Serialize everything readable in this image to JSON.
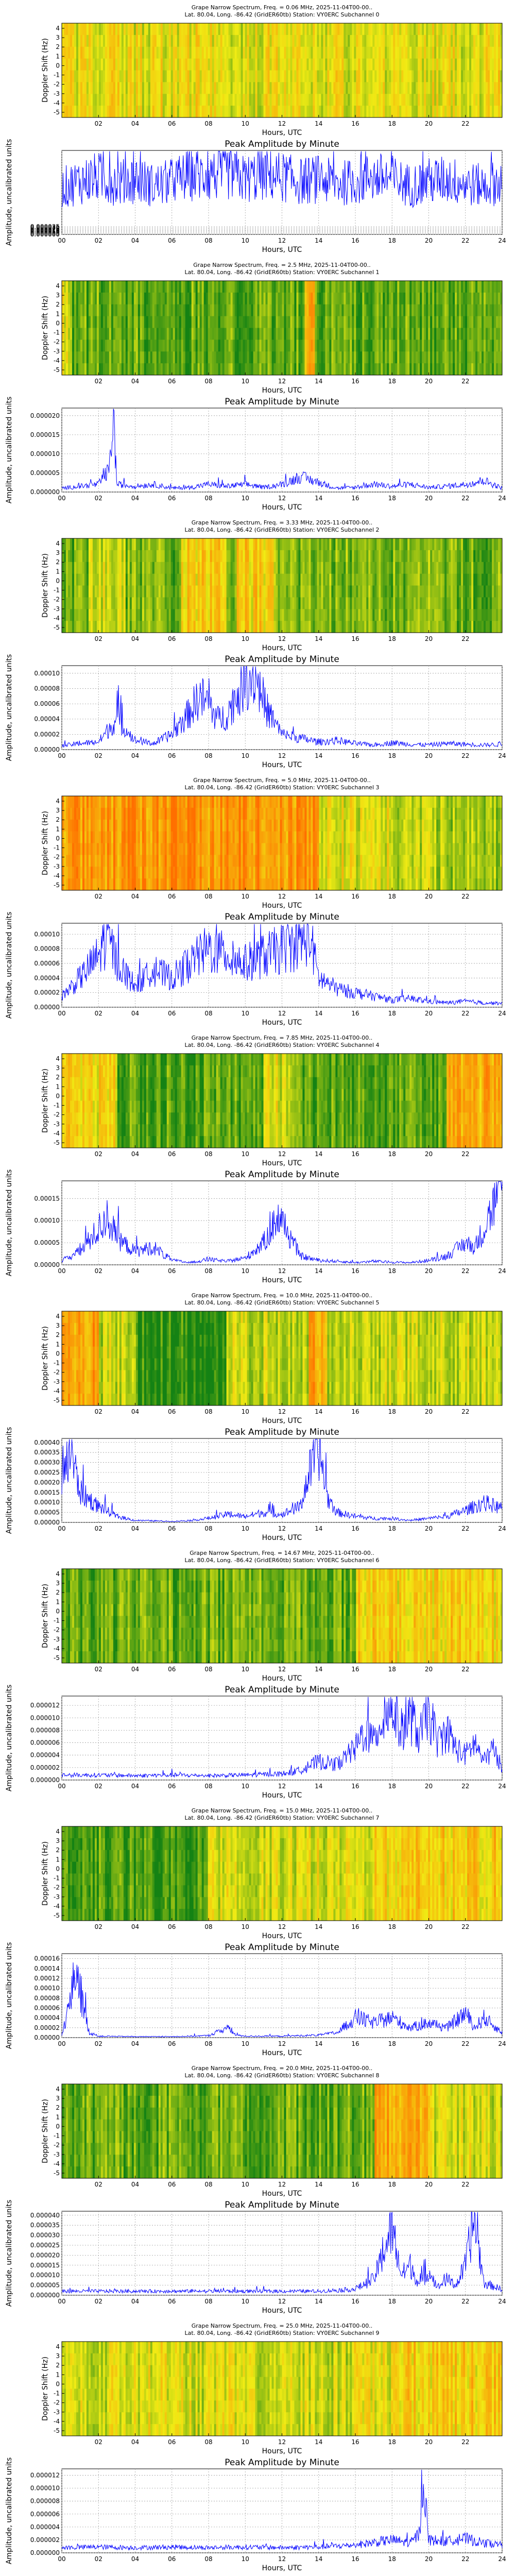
{
  "spectrum_common": {
    "ylabel": "Doppler Shift (Hz)",
    "xlabel": "Hours, UTC",
    "subtitle": "Lat. 80.04, Long. -86.42 (GridER60tb) Station: VY0ERC",
    "x_ticks": [
      "02",
      "04",
      "06",
      "08",
      "10",
      "12",
      "14",
      "16",
      "18",
      "20",
      "22"
    ],
    "y_ticks": [
      "4",
      "3",
      "2",
      "1",
      "0",
      "-1",
      "-2",
      "-3",
      "-4",
      "-5"
    ],
    "title_prefix": "Grape Narrow Spectrum, Freq. = ",
    "date_text": "2025-11-04T00-00..."
  },
  "amp_common": {
    "title": "Peak Amplitude by Minute",
    "ylabel": "Amplitude, uncalibrated units",
    "xlabel": "Hours, UTC",
    "x_ticks": [
      "00",
      "02",
      "04",
      "06",
      "08",
      "10",
      "12",
      "14",
      "16",
      "18",
      "20",
      "22",
      "24"
    ]
  },
  "colors": {
    "line": "#0000ff",
    "green": "#1e8c1e",
    "yellow": "#f2f200",
    "orange": "#ff7f00"
  },
  "chart_data": [
    {
      "type": "heatmap",
      "title": "Grape Narrow Spectrum, Freq. = 0.06 MHz, 2025-11-04T00-00..",
      "subchannel": "Subchannel 0",
      "xlabel": "Hours, UTC",
      "ylabel": "Doppler Shift (Hz)",
      "xlim": [
        0,
        24
      ],
      "ylim": [
        -5,
        4.5
      ],
      "base_level": 0.5,
      "bands": []
    },
    {
      "type": "line",
      "title": "Peak Amplitude by Minute",
      "xlabel": "Hours, UTC",
      "ylabel": "Amplitude, uncalibrated units",
      "xlim": [
        0,
        24
      ],
      "ylim": [
        0,
        0.00038
      ],
      "yticks": [
        "0.000000",
        "0.000005",
        "0.000010",
        "0.000015",
        "0.000020",
        "0.000025",
        "0.000030",
        "0.000035"
      ],
      "ytick_values": [
        0,
        5e-06,
        1e-05,
        1.5e-05,
        2e-05,
        2.5e-05,
        3e-05,
        3.5e-05
      ],
      "x": [
        0,
        1,
        2,
        3,
        4,
        5,
        6,
        7,
        8,
        9,
        10,
        11,
        12,
        13,
        14,
        15,
        16,
        17,
        18,
        19,
        20,
        21,
        22,
        23,
        24
      ],
      "y": [
        0.00021,
        0.00024,
        0.00026,
        0.00023,
        0.00025,
        0.00022,
        0.00024,
        0.00027,
        0.00026,
        0.00028,
        0.00025,
        0.00027,
        0.00026,
        0.00024,
        0.00025,
        0.00023,
        0.00024,
        0.00026,
        0.00025,
        0.00022,
        0.00024,
        0.00025,
        0.00023,
        0.00022,
        0.00024
      ]
    },
    {
      "type": "heatmap",
      "title": "Grape Narrow Spectrum, Freq. = 2.5 MHz, 2025-11-04T00-00..",
      "subchannel": "Subchannel 1",
      "xlabel": "Hours, UTC",
      "ylabel": "Doppler Shift (Hz)",
      "xlim": [
        0,
        24
      ],
      "ylim": [
        -5,
        4.5
      ],
      "base_level": 0.18,
      "bands": [
        [
          0,
          0.6,
          0.5
        ],
        [
          13.2,
          13.8,
          0.8
        ]
      ]
    },
    {
      "type": "line",
      "title": "Peak Amplitude by Minute",
      "xlabel": "Hours, UTC",
      "ylabel": "Amplitude, uncalibrated units",
      "xlim": [
        0,
        24
      ],
      "ylim": [
        0,
        2.2e-05
      ],
      "yticks": [
        "0.000000",
        "0.000005",
        "0.000010",
        "0.000015",
        "0.000020"
      ],
      "ytick_values": [
        0,
        5e-06,
        1e-05,
        1.5e-05,
        2e-05
      ],
      "x": [
        0,
        1,
        2,
        2.6,
        2.8,
        3,
        4,
        5,
        6,
        7,
        8,
        9,
        10,
        11,
        12,
        13,
        14,
        15,
        16,
        17,
        18,
        19,
        20,
        21,
        22,
        23,
        24
      ],
      "y": [
        1e-06,
        1.5e-06,
        2e-06,
        6e-06,
        2.1e-05,
        2e-06,
        1.5e-06,
        2e-06,
        1e-06,
        1.2e-06,
        2e-06,
        1.5e-06,
        2e-06,
        1.2e-06,
        2e-06,
        4e-06,
        2.5e-06,
        1e-06,
        1.2e-06,
        2e-06,
        1.5e-06,
        2e-06,
        1.2e-06,
        1.5e-06,
        2e-06,
        3e-06,
        1e-06
      ]
    },
    {
      "type": "heatmap",
      "title": "Grape Narrow Spectrum, Freq. = 3.33 MHz, 2025-11-04T00-00..",
      "subchannel": "Subchannel 2",
      "xlabel": "Hours, UTC",
      "ylabel": "Doppler Shift (Hz)",
      "xlim": [
        0,
        24
      ],
      "ylim": [
        -5,
        4.5
      ],
      "base_level": 0.22,
      "bands": [
        [
          1.5,
          3.5,
          0.45
        ],
        [
          6.5,
          9.0,
          0.6
        ],
        [
          9.5,
          11.5,
          0.6
        ]
      ]
    },
    {
      "type": "line",
      "title": "Peak Amplitude by Minute",
      "xlabel": "Hours, UTC",
      "ylabel": "Amplitude, uncalibrated units",
      "xlim": [
        0,
        24
      ],
      "ylim": [
        0,
        0.00011
      ],
      "yticks": [
        "0.00000",
        "0.00002",
        "0.00004",
        "0.00006",
        "0.00008",
        "0.00010"
      ],
      "ytick_values": [
        0,
        2e-05,
        4e-05,
        6e-05,
        8e-05,
        0.0001
      ],
      "x": [
        0,
        1,
        2,
        2.5,
        3,
        4,
        5,
        6,
        7,
        7.5,
        8,
        8.5,
        9,
        9.5,
        10,
        10.5,
        11,
        11.5,
        12,
        13,
        14,
        15,
        16,
        17,
        18,
        19,
        20,
        21,
        22,
        23,
        24
      ],
      "y": [
        5e-06,
        8e-06,
        1e-05,
        2.5e-05,
        4e-05,
        1.2e-05,
        8e-06,
        2e-05,
        5e-05,
        7e-05,
        6e-05,
        4e-05,
        4.5e-05,
        7e-05,
        9e-05,
        0.0001,
        6e-05,
        4e-05,
        2e-05,
        1.5e-05,
        1e-05,
        1.2e-05,
        8e-06,
        6e-06,
        9e-06,
        7e-06,
        6e-06,
        8e-06,
        7e-06,
        6e-06,
        7e-06
      ]
    },
    {
      "type": "heatmap",
      "title": "Grape Narrow Spectrum, Freq. = 5.0 MHz, 2025-11-04T00-00..",
      "subchannel": "Subchannel 3",
      "xlabel": "Hours, UTC",
      "ylabel": "Doppler Shift (Hz)",
      "xlim": [
        0,
        24
      ],
      "ylim": [
        -5,
        4.5
      ],
      "base_level": 0.5,
      "bands": [
        [
          0,
          14,
          0.85
        ],
        [
          14,
          18,
          0.5
        ],
        [
          18,
          24,
          0.35
        ]
      ]
    },
    {
      "type": "line",
      "title": "Peak Amplitude by Minute",
      "xlabel": "Hours, UTC",
      "ylabel": "Amplitude, uncalibrated units",
      "xlim": [
        0,
        24
      ],
      "ylim": [
        0,
        0.000115
      ],
      "yticks": [
        "0.00000",
        "0.00002",
        "0.00004",
        "0.00006",
        "0.00008",
        "0.00010"
      ],
      "ytick_values": [
        0,
        2e-05,
        4e-05,
        6e-05,
        8e-05,
        0.0001
      ],
      "x": [
        0,
        1,
        2,
        2.5,
        3,
        4,
        5,
        6,
        7,
        8,
        9,
        10,
        11,
        12,
        13,
        13.5,
        14,
        15,
        16,
        17,
        18,
        19,
        20,
        21,
        22,
        23,
        24
      ],
      "y": [
        1.5e-05,
        4e-05,
        7e-05,
        0.0001,
        6e-05,
        3e-05,
        5e-05,
        4e-05,
        6e-05,
        8e-05,
        7e-05,
        6e-05,
        7e-05,
        8e-05,
        9e-05,
        0.0001,
        4e-05,
        2.5e-05,
        2e-05,
        1.5e-05,
        1e-05,
        1.2e-05,
        8e-06,
        6e-06,
        8e-06,
        6e-06,
        5e-06
      ]
    },
    {
      "type": "heatmap",
      "title": "Grape Narrow Spectrum, Freq. = 7.85 MHz, 2025-11-04T00-00..",
      "subchannel": "Subchannel 4",
      "xlabel": "Hours, UTC",
      "ylabel": "Doppler Shift (Hz)",
      "xlim": [
        0,
        24
      ],
      "ylim": [
        -5,
        4.5
      ],
      "base_level": 0.15,
      "bands": [
        [
          0,
          3,
          0.55
        ],
        [
          11,
          13,
          0.45
        ],
        [
          21,
          24,
          0.75
        ]
      ]
    },
    {
      "type": "line",
      "title": "Peak Amplitude by Minute",
      "xlabel": "Hours, UTC",
      "ylabel": "Amplitude, uncalibrated units",
      "xlim": [
        0,
        24
      ],
      "ylim": [
        0,
        0.00019
      ],
      "yticks": [
        "0.00000",
        "0.00005",
        "0.00010",
        "0.00015"
      ],
      "ytick_values": [
        0,
        5e-05,
        0.0001,
        0.00015
      ],
      "x": [
        0,
        1,
        2,
        2.5,
        3,
        4,
        5,
        6,
        7,
        8,
        9,
        10,
        11,
        11.8,
        12.5,
        13,
        14,
        15,
        16,
        17,
        18,
        19,
        20,
        21,
        22,
        22.5,
        23,
        23.5,
        24
      ],
      "y": [
        1e-05,
        3e-05,
        8e-05,
        0.00011,
        6e-05,
        3e-05,
        4e-05,
        1e-05,
        5e-06,
        1.2e-05,
        8e-06,
        1.5e-05,
        5e-05,
        0.00011,
        6e-05,
        2e-05,
        1e-05,
        8e-06,
        5e-06,
        8e-06,
        6e-06,
        5e-06,
        1e-05,
        2e-05,
        5e-05,
        4e-05,
        8e-05,
        0.00013,
        0.00018
      ]
    },
    {
      "type": "heatmap",
      "title": "Grape Narrow Spectrum, Freq. = 10.0 MHz, 2025-11-04T00-00..",
      "subchannel": "Subchannel 5",
      "xlabel": "Hours, UTC",
      "ylabel": "Doppler Shift (Hz)",
      "xlim": [
        0,
        24
      ],
      "ylim": [
        -5,
        4.5
      ],
      "base_level": 0.4,
      "bands": [
        [
          0,
          2,
          0.8
        ],
        [
          4,
          9,
          0.05
        ],
        [
          13.5,
          14.5,
          0.75
        ]
      ]
    },
    {
      "type": "line",
      "title": "Peak Amplitude by Minute",
      "xlabel": "Hours, UTC",
      "ylabel": "Amplitude, uncalibrated units",
      "xlim": [
        0,
        24
      ],
      "ylim": [
        0,
        0.00042
      ],
      "yticks": [
        "0.00000",
        "0.00005",
        "0.00010",
        "0.00015",
        "0.00020",
        "0.00025",
        "0.00030",
        "0.00035",
        "0.00040"
      ],
      "ytick_values": [
        0,
        5e-05,
        0.0001,
        0.00015,
        0.0002,
        0.00025,
        0.0003,
        0.00035,
        0.0004
      ],
      "x": [
        0,
        0.5,
        1,
        2,
        3,
        4,
        5,
        6,
        7,
        8,
        9,
        10,
        11,
        12,
        13,
        13.5,
        14,
        14.5,
        15,
        16,
        17,
        18,
        19,
        20,
        21,
        22,
        23,
        24
      ],
      "y": [
        0.0002,
        0.00035,
        0.00015,
        8e-05,
        3e-05,
        1e-05,
        8e-06,
        5e-06,
        1e-05,
        2e-05,
        4e-05,
        3e-05,
        5e-05,
        4e-05,
        8e-05,
        0.00025,
        0.00038,
        0.00012,
        5e-05,
        3e-05,
        2e-05,
        2e-05,
        1e-05,
        2e-05,
        3e-05,
        6e-05,
        0.0001,
        7e-05
      ]
    },
    {
      "type": "heatmap",
      "title": "Grape Narrow Spectrum, Freq. = 14.67 MHz, 2025-11-04T00-00..",
      "subchannel": "Subchannel 6",
      "xlabel": "Hours, UTC",
      "ylabel": "Doppler Shift (Hz)",
      "xlim": [
        0,
        24
      ],
      "ylim": [
        -5,
        4.5
      ],
      "base_level": 0.2,
      "bands": [
        [
          16,
          24,
          0.6
        ]
      ]
    },
    {
      "type": "line",
      "title": "Peak Amplitude by Minute",
      "xlabel": "Hours, UTC",
      "ylabel": "Amplitude, uncalibrated units",
      "xlim": [
        0,
        24
      ],
      "ylim": [
        0,
        1.35e-05
      ],
      "yticks": [
        "0.000000",
        "0.000002",
        "0.000004",
        "0.000006",
        "0.000008",
        "0.000010",
        "0.000012"
      ],
      "ytick_values": [
        0,
        2e-06,
        4e-06,
        6e-06,
        8e-06,
        1e-05,
        1.2e-05
      ],
      "x": [
        0,
        2,
        4,
        6,
        8,
        10,
        12,
        13,
        14,
        15,
        16,
        16.5,
        17,
        17.5,
        18,
        18.5,
        19,
        19.5,
        20,
        20.5,
        21,
        21.5,
        22,
        22.5,
        23,
        23.5,
        24
      ],
      "y": [
        8e-07,
        8e-07,
        7e-07,
        8e-07,
        7e-07,
        8e-07,
        1e-06,
        1.5e-06,
        3e-06,
        2.5e-06,
        5e-06,
        8e-06,
        6e-06,
        1e-05,
        1.2e-05,
        8e-06,
        1e-05,
        7e-06,
        1.1e-05,
        6e-06,
        8e-06,
        5e-06,
        4e-06,
        6e-06,
        3e-06,
        5e-06,
        2e-06
      ]
    },
    {
      "type": "heatmap",
      "title": "Grape Narrow Spectrum, Freq. = 15.0 MHz, 2025-11-04T00-00..",
      "subchannel": "Subchannel 7",
      "xlabel": "Hours, UTC",
      "ylabel": "Doppler Shift (Hz)",
      "xlim": [
        0,
        24
      ],
      "ylim": [
        -5,
        4.5
      ],
      "base_level": 0.45,
      "bands": [
        [
          0,
          8,
          0.12
        ],
        [
          17,
          24,
          0.6
        ]
      ]
    },
    {
      "type": "line",
      "title": "Peak Amplitude by Minute",
      "xlabel": "Hours, UTC",
      "ylabel": "Amplitude, uncalibrated units",
      "xlim": [
        0,
        24
      ],
      "ylim": [
        0,
        0.00017
      ],
      "yticks": [
        "0.00000",
        "0.00002",
        "0.00004",
        "0.00006",
        "0.00008",
        "0.00010",
        "0.00012",
        "0.00014",
        "0.00016"
      ],
      "ytick_values": [
        0,
        2e-05,
        4e-05,
        6e-05,
        8e-05,
        0.0001,
        0.00012,
        0.00014,
        0.00016
      ],
      "x": [
        0,
        0.5,
        0.8,
        1,
        1.5,
        2,
        4,
        6,
        8,
        9,
        9.5,
        10,
        12,
        14,
        15,
        16,
        17,
        18,
        19,
        20,
        21,
        22,
        22.5,
        23,
        24
      ],
      "y": [
        5e-06,
        8e-05,
        0.00015,
        9e-05,
        1e-05,
        3e-06,
        2e-06,
        2e-06,
        4e-06,
        2e-05,
        5e-06,
        3e-06,
        3e-06,
        5e-06,
        1e-05,
        4e-05,
        3e-05,
        4e-05,
        2e-05,
        3e-05,
        2e-05,
        5e-05,
        2e-05,
        4e-05,
        1e-05
      ]
    },
    {
      "type": "heatmap",
      "title": "Grape Narrow Spectrum, Freq. = 20.0 MHz, 2025-11-04T00-00..",
      "subchannel": "Subchannel 8",
      "xlabel": "Hours, UTC",
      "ylabel": "Doppler Shift (Hz)",
      "xlim": [
        0,
        24
      ],
      "ylim": [
        -5,
        4.5
      ],
      "base_level": 0.2,
      "bands": [
        [
          17,
          20,
          0.75
        ],
        [
          20,
          24,
          0.45
        ]
      ]
    },
    {
      "type": "line",
      "title": "Peak Amplitude by Minute",
      "xlabel": "Hours, UTC",
      "ylabel": "Amplitude, uncalibrated units",
      "xlim": [
        0,
        24
      ],
      "ylim": [
        0,
        4.2e-05
      ],
      "yticks": [
        "0.000000",
        "0.000005",
        "0.000010",
        "0.000015",
        "0.000020",
        "0.000025",
        "0.000030",
        "0.000035",
        "0.000040"
      ],
      "ytick_values": [
        0,
        5e-06,
        1e-05,
        1.5e-05,
        2e-05,
        2.5e-05,
        3e-05,
        3.5e-05,
        4e-05
      ],
      "x": [
        0,
        2,
        4,
        6,
        8,
        10,
        12,
        14,
        16,
        17,
        17.5,
        18,
        18.5,
        19,
        19.5,
        20,
        20.5,
        21,
        21.5,
        22,
        22.5,
        23,
        24
      ],
      "y": [
        2e-06,
        2e-06,
        2e-06,
        2e-06,
        2e-06,
        2e-06,
        2e-06,
        2e-06,
        3e-06,
        8e-06,
        2e-05,
        3.4e-05,
        1e-05,
        1.5e-05,
        5e-06,
        1.2e-05,
        4e-06,
        8e-06,
        5e-06,
        1.5e-05,
        3.9e-05,
        6e-06,
        3e-06
      ]
    },
    {
      "type": "heatmap",
      "title": "Grape Narrow Spectrum, Freq. = 25.0 MHz, 2025-11-04T00-00..",
      "subchannel": "Subchannel 9",
      "xlabel": "Hours, UTC",
      "ylabel": "Doppler Shift (Hz)",
      "xlim": [
        0,
        24
      ],
      "ylim": [
        -5,
        4.5
      ],
      "base_level": 0.45,
      "bands": [
        [
          18,
          24,
          0.6
        ]
      ]
    },
    {
      "type": "line",
      "title": "Peak Amplitude by Minute",
      "xlabel": "Hours, UTC",
      "ylabel": "Amplitude, uncalibrated units",
      "xlim": [
        0,
        24
      ],
      "ylim": [
        0,
        1.3e-05
      ],
      "yticks": [
        "0.000000",
        "0.000002",
        "0.000004",
        "0.000006",
        "0.000008",
        "0.000010",
        "0.000012"
      ],
      "ytick_values": [
        0,
        2e-06,
        4e-06,
        6e-06,
        8e-06,
        1e-05,
        1.2e-05
      ],
      "x": [
        0,
        2,
        4,
        6,
        8,
        10,
        12,
        14,
        16,
        18,
        19,
        19.5,
        19.7,
        20,
        21,
        22,
        23,
        24
      ],
      "y": [
        8e-07,
        9e-07,
        8e-07,
        9e-07,
        8e-07,
        9e-07,
        8e-07,
        9e-07,
        1.2e-06,
        2e-06,
        1.5e-06,
        3e-06,
        1.2e-05,
        2e-06,
        1.8e-06,
        2.2e-06,
        1.5e-06,
        1.2e-06
      ]
    }
  ]
}
